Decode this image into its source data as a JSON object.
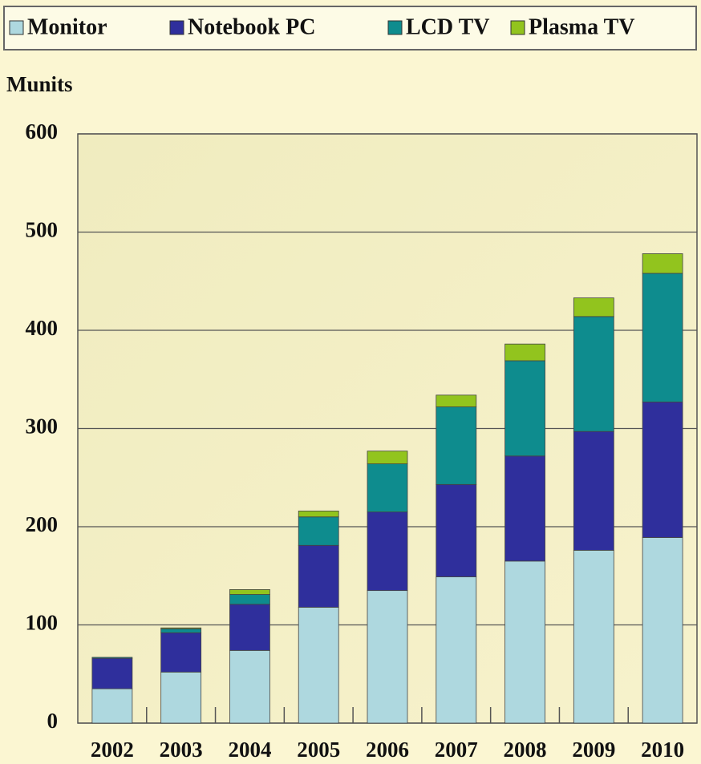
{
  "chart_data": {
    "type": "stacked_bar",
    "y_label": "Munits",
    "categories": [
      "2002",
      "2003",
      "2004",
      "2005",
      "2006",
      "2007",
      "2008",
      "2009",
      "2010"
    ],
    "series": [
      {
        "name": "Monitor",
        "color": "#aed8df",
        "values": [
          35,
          52,
          74,
          118,
          135,
          149,
          165,
          176,
          189
        ]
      },
      {
        "name": "Notebook PC",
        "color": "#2f2f9c",
        "values": [
          31,
          40,
          47,
          63,
          80,
          94,
          107,
          121,
          138
        ]
      },
      {
        "name": "LCD TV",
        "color": "#0e8c8e",
        "values": [
          1,
          4,
          10,
          29,
          49,
          79,
          97,
          117,
          131
        ]
      },
      {
        "name": "Plasma TV",
        "color": "#92c41e",
        "values": [
          0,
          1,
          5,
          6,
          13,
          12,
          17,
          19,
          20
        ]
      }
    ],
    "ylim": [
      0,
      600
    ],
    "yticks": [
      0,
      100,
      200,
      300,
      400,
      500,
      600
    ],
    "grid": true
  }
}
